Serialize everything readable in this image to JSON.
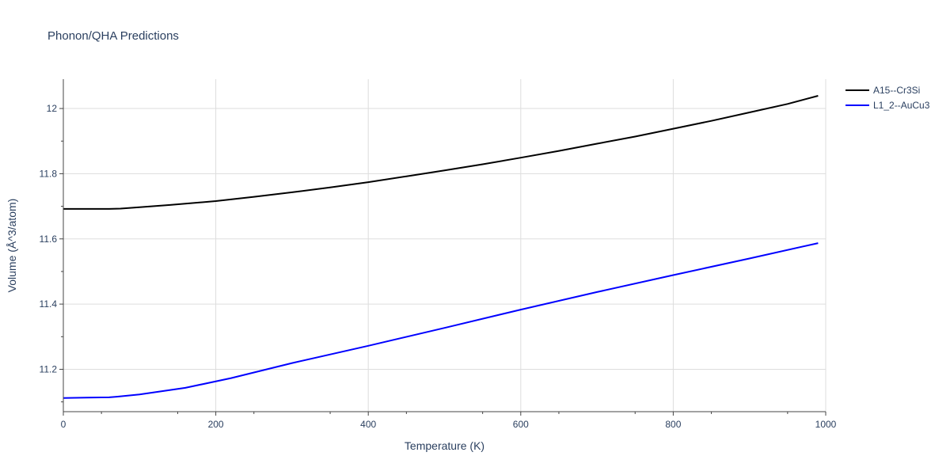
{
  "chart_data": {
    "type": "line",
    "title": "Phonon/QHA Predictions",
    "xlabel": "Temperature (K)",
    "ylabel": "Volume (Å^3/atom)",
    "xlim": [
      0,
      1000
    ],
    "ylim": [
      11.07,
      12.09
    ],
    "x_ticks": [
      0,
      200,
      400,
      600,
      800,
      1000
    ],
    "x_tick_labels": [
      "0",
      "200",
      "400",
      "600",
      "800",
      "1000"
    ],
    "y_ticks": [
      11.2,
      11.4,
      11.6,
      11.8,
      12.0
    ],
    "y_tick_labels": [
      "11.2",
      "11.4",
      "11.6",
      "11.8",
      "12"
    ],
    "grid": true,
    "legend_position": "top-right outside",
    "series": [
      {
        "name": "A15--Cr3Si",
        "color": "#000000",
        "x": [
          0,
          30,
          60,
          75,
          100,
          140,
          200,
          250,
          300,
          350,
          400,
          450,
          500,
          550,
          600,
          650,
          700,
          750,
          800,
          850,
          900,
          950,
          990
        ],
        "y": [
          11.692,
          11.692,
          11.692,
          11.693,
          11.697,
          11.704,
          11.716,
          11.729,
          11.743,
          11.758,
          11.774,
          11.792,
          11.81,
          11.829,
          11.849,
          11.87,
          11.892,
          11.914,
          11.938,
          11.962,
          11.988,
          12.014,
          12.039
        ]
      },
      {
        "name": "L1_2--AuCu3",
        "color": "#0000ff",
        "x": [
          0,
          30,
          60,
          70,
          100,
          160,
          220,
          260,
          300,
          400,
          500,
          600,
          700,
          800,
          900,
          990
        ],
        "y": [
          11.112,
          11.113,
          11.114,
          11.116,
          11.123,
          11.143,
          11.173,
          11.196,
          11.219,
          11.272,
          11.327,
          11.383,
          11.437,
          11.489,
          11.54,
          11.587
        ]
      }
    ]
  }
}
